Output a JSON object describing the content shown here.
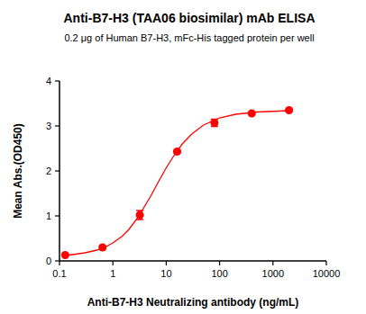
{
  "chart_data": {
    "type": "scatter",
    "title": "Anti-B7-H3 (TAA06 biosimilar) mAb ELISA",
    "subtitle": "0.2 μg of Human B7-H3, mFc-His tagged protein per well",
    "x_label": "Anti-B7-H3 Neutralizing antibody (ng/mL)",
    "y_label": "Mean Abs.(OD450)",
    "log": "x",
    "grid": false,
    "xlim": [
      0.1,
      10000
    ],
    "xticks": [
      0.1,
      1,
      10,
      100,
      1000,
      10000
    ],
    "ylim": [
      0,
      4
    ],
    "yticks": [
      0,
      1,
      2,
      3,
      4
    ],
    "series": [
      {
        "type": "scatter",
        "color": "#ff0000",
        "marker": "circle",
        "x": [
          0.128,
          0.64,
          3.2,
          16,
          80,
          400,
          2000
        ],
        "values": [
          0.13,
          0.3,
          1.02,
          2.43,
          3.07,
          3.28,
          3.35
        ],
        "errors": [
          0.02,
          0.03,
          0.1,
          0.03,
          0.08,
          0.03,
          0.02
        ]
      },
      {
        "type": "line",
        "color": "#ff0000",
        "line_style": "solid",
        "x": [
          0.128,
          0.2,
          0.3,
          0.5,
          0.7,
          1,
          1.5,
          2,
          3,
          5,
          7,
          10,
          15,
          20,
          30,
          50,
          100,
          200,
          500,
          2000
        ],
        "values": [
          0.12,
          0.15,
          0.18,
          0.24,
          0.3,
          0.4,
          0.55,
          0.7,
          0.98,
          1.42,
          1.74,
          2.07,
          2.4,
          2.6,
          2.82,
          3.02,
          3.18,
          3.26,
          3.31,
          3.34
        ]
      }
    ]
  }
}
